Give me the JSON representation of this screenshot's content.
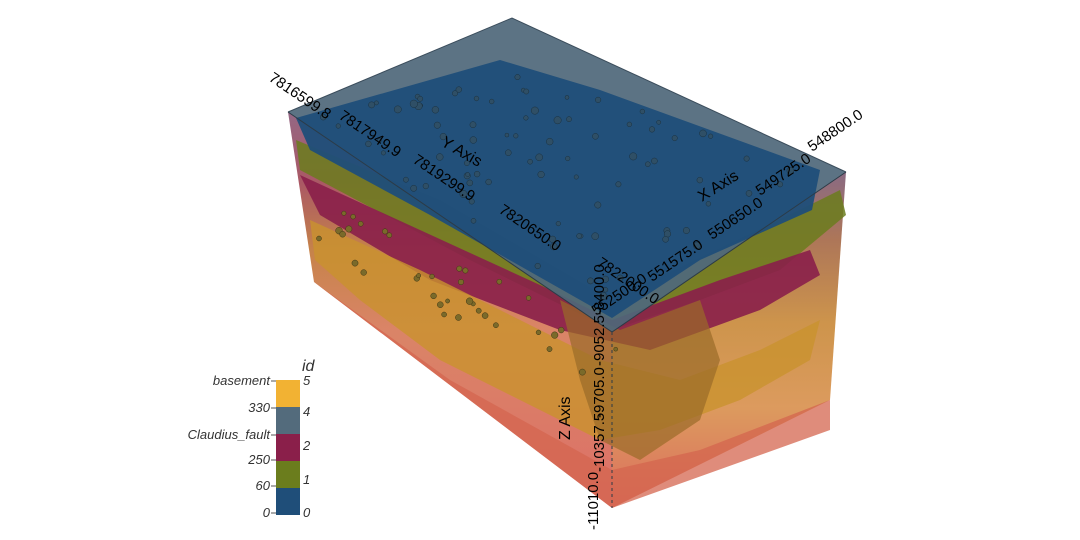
{
  "scene": {
    "axes": {
      "y_title": "Y Axis",
      "x_title": "X Axis",
      "z_title": "Z Axis",
      "y_ticks": [
        "7816599.8",
        "7817949.9",
        "7819299.9",
        "7820650.0",
        "7822000.0"
      ],
      "x_ticks": [
        "548800.0",
        "549725.0",
        "550650.0",
        "551575.0",
        "552500.0"
      ],
      "z_ticks": [
        "-11010.0",
        "-10357.5",
        "-9705.0",
        "-9052.5",
        "-8400.0"
      ]
    },
    "colors": {
      "layer_0": "#1f4e79",
      "layer_1": "#6b7d1d",
      "layer_2": "#8a1f4a",
      "layer_4": "#4e6779",
      "layer_5": "#f2b233",
      "lower_block": "#d4654f",
      "mid_block": "#c98c3a"
    }
  },
  "legend": {
    "title": "id",
    "left_labels": [
      "basement",
      "330",
      "Claudius_fault",
      "250",
      "60",
      "0"
    ],
    "right_labels": [
      "5",
      "4",
      "2",
      "1",
      "0"
    ],
    "swatches": [
      {
        "id": "5",
        "color": "#f2b233"
      },
      {
        "id": "4",
        "color": "#536b7c"
      },
      {
        "id": "2",
        "color": "#8a1f4a"
      },
      {
        "id": "1",
        "color": "#6b7d1d"
      },
      {
        "id": "0",
        "color": "#1f4e79"
      }
    ]
  }
}
